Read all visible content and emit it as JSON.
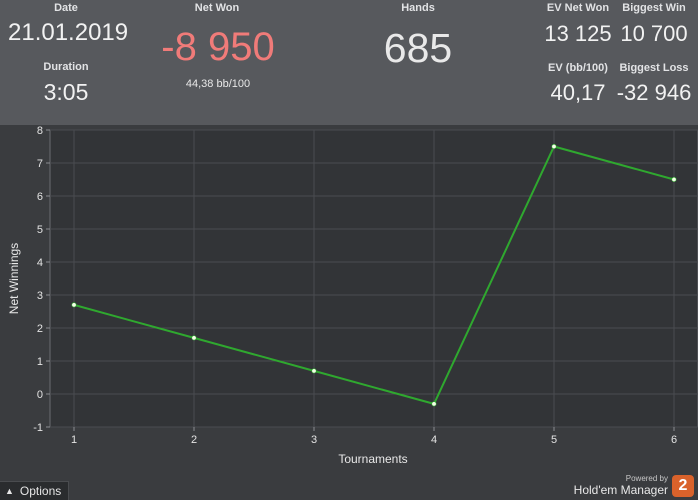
{
  "header": {
    "date_label": "Date",
    "date_value": "21.01.2019",
    "duration_label": "Duration",
    "duration_value": "3:05",
    "net_won_label": "Net Won",
    "net_won_value": "-8 950",
    "net_won_sub": "44,38 bb/100",
    "hands_label": "Hands",
    "hands_value": "685",
    "ev_net_won_label": "EV Net Won",
    "ev_net_won_value": "13 125",
    "biggest_win_label": "Biggest Win",
    "biggest_win_value": "10 700",
    "ev_bb_label": "EV (bb/100)",
    "ev_bb_value": "40,17",
    "biggest_loss_label": "Biggest Loss",
    "biggest_loss_value": "-32 946"
  },
  "colors": {
    "net_won": "#f07b79",
    "line": "#2fa82f",
    "point": "#f4ffe8",
    "header_bg": "#57595d",
    "plot_bg": "#323437"
  },
  "chart_data": {
    "type": "line",
    "xlabel": "Tournaments",
    "ylabel": "Net Winnings",
    "x": [
      1,
      2,
      3,
      4,
      5,
      6
    ],
    "series": [
      {
        "values": [
          2.7,
          1.7,
          0.7,
          -0.3,
          7.5,
          6.5
        ]
      }
    ],
    "xlim": [
      0.8,
      6.2
    ],
    "ylim": [
      -1,
      8
    ],
    "xticks": [
      "1",
      "2",
      "3",
      "4",
      "5",
      "6"
    ],
    "yticks": [
      "8",
      "7",
      "6",
      "5",
      "4",
      "3",
      "2",
      "1",
      "0",
      "-1"
    ],
    "grid": true
  },
  "footer": {
    "options_label": "Options",
    "caret_icon": "chevron-up-icon",
    "powered_by": "Powered by",
    "brand_name": "Hold'em Manager",
    "brand_logo_text": "2"
  }
}
